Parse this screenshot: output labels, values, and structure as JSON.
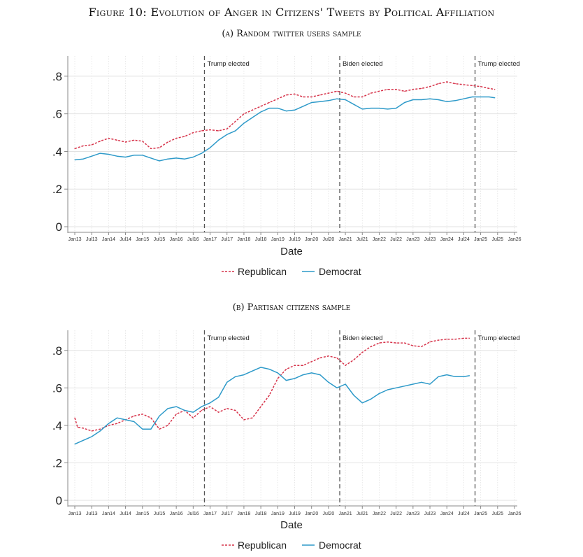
{
  "figure_title": "Figure 10: Evolution of Anger in Citizens' Tweets by Political Affiliation",
  "colors": {
    "republican": "#d6334a",
    "democrat": "#2e9ac9",
    "event": "#555555",
    "grid": "#e2e2e2",
    "axis": "#888888"
  },
  "chart_data": [
    {
      "type": "line",
      "panel_title": "(a) Random twitter users sample",
      "xlabel": "Date",
      "ylabel": "",
      "x_ticks": [
        "Jan13",
        "Jul13",
        "Jan14",
        "Jul14",
        "Jan15",
        "Jul15",
        "Jan16",
        "Jul16",
        "Jan17",
        "Jul17",
        "Jan18",
        "Jul18",
        "Jan19",
        "Jul19",
        "Jan20",
        "Jul20",
        "Jan21",
        "Jul21",
        "Jan22",
        "Jul22",
        "Jan23",
        "Jul23",
        "Jan24",
        "Jul24",
        "Jan25",
        "Jul25",
        "Jan26"
      ],
      "y_ticks": [
        "0",
        ".2",
        ".4",
        ".6",
        ".8"
      ],
      "ylim": [
        0,
        0.9
      ],
      "legend_position": "bottom",
      "grid": true,
      "events": [
        {
          "x": "Nov16",
          "label": "Trump elected"
        },
        {
          "x": "Nov20",
          "label": "Biden elected"
        },
        {
          "x": "Nov24",
          "label": "Trump elected"
        }
      ],
      "series": [
        {
          "name": "Republican",
          "style": "dashed",
          "points": [
            [
              "Jan13",
              0.415
            ],
            [
              "Apr13",
              0.43
            ],
            [
              "Jul13",
              0.435
            ],
            [
              "Oct13",
              0.455
            ],
            [
              "Jan14",
              0.47
            ],
            [
              "Apr14",
              0.46
            ],
            [
              "Jul14",
              0.45
            ],
            [
              "Oct14",
              0.46
            ],
            [
              "Jan15",
              0.455
            ],
            [
              "Apr15",
              0.415
            ],
            [
              "Jul15",
              0.42
            ],
            [
              "Oct15",
              0.45
            ],
            [
              "Jan16",
              0.47
            ],
            [
              "Apr16",
              0.48
            ],
            [
              "Jul16",
              0.5
            ],
            [
              "Oct16",
              0.51
            ],
            [
              "Jan17",
              0.515
            ],
            [
              "Apr17",
              0.51
            ],
            [
              "Jul17",
              0.52
            ],
            [
              "Oct17",
              0.56
            ],
            [
              "Jan18",
              0.6
            ],
            [
              "Apr18",
              0.62
            ],
            [
              "Jul18",
              0.64
            ],
            [
              "Oct18",
              0.66
            ],
            [
              "Jan19",
              0.68
            ],
            [
              "Apr19",
              0.7
            ],
            [
              "Jul19",
              0.705
            ],
            [
              "Oct19",
              0.69
            ],
            [
              "Jan20",
              0.69
            ],
            [
              "Apr20",
              0.7
            ],
            [
              "Jul20",
              0.71
            ],
            [
              "Oct20",
              0.72
            ],
            [
              "Jan21",
              0.71
            ],
            [
              "Apr21",
              0.69
            ],
            [
              "Jul21",
              0.69
            ],
            [
              "Oct21",
              0.71
            ],
            [
              "Jan22",
              0.72
            ],
            [
              "Apr22",
              0.73
            ],
            [
              "Jul22",
              0.73
            ],
            [
              "Oct22",
              0.72
            ],
            [
              "Jan23",
              0.73
            ],
            [
              "Apr23",
              0.735
            ],
            [
              "Jul23",
              0.745
            ],
            [
              "Oct23",
              0.76
            ],
            [
              "Jan24",
              0.77
            ],
            [
              "Apr24",
              0.76
            ],
            [
              "Jul24",
              0.755
            ],
            [
              "Oct24",
              0.75
            ],
            [
              "Jan25",
              0.745
            ],
            [
              "Apr25",
              0.735
            ],
            [
              "Jun25",
              0.73
            ]
          ]
        },
        {
          "name": "Democrat",
          "style": "solid",
          "points": [
            [
              "Jan13",
              0.355
            ],
            [
              "Apr13",
              0.36
            ],
            [
              "Jul13",
              0.375
            ],
            [
              "Oct13",
              0.39
            ],
            [
              "Jan14",
              0.385
            ],
            [
              "Apr14",
              0.375
            ],
            [
              "Jul14",
              0.37
            ],
            [
              "Oct14",
              0.38
            ],
            [
              "Jan15",
              0.38
            ],
            [
              "Apr15",
              0.365
            ],
            [
              "Jul15",
              0.35
            ],
            [
              "Oct15",
              0.36
            ],
            [
              "Jan16",
              0.365
            ],
            [
              "Apr16",
              0.36
            ],
            [
              "Jul16",
              0.37
            ],
            [
              "Oct16",
              0.39
            ],
            [
              "Jan17",
              0.42
            ],
            [
              "Apr17",
              0.46
            ],
            [
              "Jul17",
              0.49
            ],
            [
              "Oct17",
              0.51
            ],
            [
              "Jan18",
              0.55
            ],
            [
              "Apr18",
              0.58
            ],
            [
              "Jul18",
              0.61
            ],
            [
              "Oct18",
              0.63
            ],
            [
              "Jan19",
              0.63
            ],
            [
              "Apr19",
              0.615
            ],
            [
              "Jul19",
              0.62
            ],
            [
              "Oct19",
              0.64
            ],
            [
              "Jan20",
              0.66
            ],
            [
              "Apr20",
              0.665
            ],
            [
              "Jul20",
              0.67
            ],
            [
              "Oct20",
              0.68
            ],
            [
              "Jan21",
              0.675
            ],
            [
              "Apr21",
              0.65
            ],
            [
              "Jul21",
              0.625
            ],
            [
              "Oct21",
              0.63
            ],
            [
              "Jan22",
              0.63
            ],
            [
              "Apr22",
              0.625
            ],
            [
              "Jul22",
              0.63
            ],
            [
              "Oct22",
              0.66
            ],
            [
              "Jan23",
              0.675
            ],
            [
              "Apr23",
              0.675
            ],
            [
              "Jul23",
              0.68
            ],
            [
              "Oct23",
              0.675
            ],
            [
              "Jan24",
              0.665
            ],
            [
              "Apr24",
              0.67
            ],
            [
              "Jul24",
              0.68
            ],
            [
              "Oct24",
              0.69
            ],
            [
              "Jan25",
              0.69
            ],
            [
              "Apr25",
              0.69
            ],
            [
              "Jun25",
              0.685
            ]
          ]
        }
      ]
    },
    {
      "type": "line",
      "panel_title": "(b) Partisan citizens sample",
      "xlabel": "Date",
      "ylabel": "",
      "x_ticks": [
        "Jan13",
        "Jul13",
        "Jan14",
        "Jul14",
        "Jan15",
        "Jul15",
        "Jan16",
        "Jul16",
        "Jan17",
        "Jul17",
        "Jan18",
        "Jul18",
        "Jan19",
        "Jul19",
        "Jan20",
        "Jul20",
        "Jan21",
        "Jul21",
        "Jan22",
        "Jul22",
        "Jan23",
        "Jul23",
        "Jan24",
        "Jul24",
        "Jan25",
        "Jul25",
        "Jan26"
      ],
      "y_ticks": [
        "0",
        ".2",
        ".4",
        ".6",
        ".8"
      ],
      "ylim": [
        0,
        0.9
      ],
      "legend_position": "bottom",
      "grid": true,
      "events": [
        {
          "x": "Nov16",
          "label": "Trump elected"
        },
        {
          "x": "Nov20",
          "label": "Biden elected"
        },
        {
          "x": "Nov24",
          "label": "Trump elected"
        }
      ],
      "series": [
        {
          "name": "Republican",
          "style": "dashed",
          "points": [
            [
              "Jan13",
              0.44
            ],
            [
              "Feb13",
              0.39
            ],
            [
              "Apr13",
              0.385
            ],
            [
              "Jul13",
              0.37
            ],
            [
              "Oct13",
              0.38
            ],
            [
              "Jan14",
              0.4
            ],
            [
              "Apr14",
              0.41
            ],
            [
              "Jul14",
              0.43
            ],
            [
              "Oct14",
              0.45
            ],
            [
              "Jan15",
              0.46
            ],
            [
              "Apr15",
              0.44
            ],
            [
              "Jul15",
              0.38
            ],
            [
              "Oct15",
              0.4
            ],
            [
              "Jan16",
              0.46
            ],
            [
              "Apr16",
              0.48
            ],
            [
              "Jul16",
              0.44
            ],
            [
              "Oct16",
              0.48
            ],
            [
              "Jan17",
              0.5
            ],
            [
              "Apr17",
              0.47
            ],
            [
              "Jul17",
              0.49
            ],
            [
              "Oct17",
              0.48
            ],
            [
              "Jan18",
              0.43
            ],
            [
              "Apr18",
              0.44
            ],
            [
              "Jul18",
              0.5
            ],
            [
              "Oct18",
              0.56
            ],
            [
              "Jan19",
              0.65
            ],
            [
              "Apr19",
              0.7
            ],
            [
              "Jul19",
              0.72
            ],
            [
              "Oct19",
              0.72
            ],
            [
              "Jan20",
              0.74
            ],
            [
              "Apr20",
              0.76
            ],
            [
              "Jul20",
              0.77
            ],
            [
              "Oct20",
              0.76
            ],
            [
              "Jan21",
              0.72
            ],
            [
              "Apr21",
              0.75
            ],
            [
              "Jul21",
              0.79
            ],
            [
              "Oct21",
              0.82
            ],
            [
              "Jan22",
              0.84
            ],
            [
              "Apr22",
              0.845
            ],
            [
              "Jul22",
              0.84
            ],
            [
              "Oct22",
              0.84
            ],
            [
              "Jan23",
              0.825
            ],
            [
              "Apr23",
              0.82
            ],
            [
              "Jul23",
              0.845
            ],
            [
              "Oct23",
              0.855
            ],
            [
              "Jan24",
              0.86
            ],
            [
              "Apr24",
              0.86
            ],
            [
              "Jul24",
              0.865
            ],
            [
              "Sep24",
              0.865
            ]
          ]
        },
        {
          "name": "Democrat",
          "style": "solid",
          "points": [
            [
              "Jan13",
              0.3
            ],
            [
              "Apr13",
              0.32
            ],
            [
              "Jul13",
              0.34
            ],
            [
              "Oct13",
              0.37
            ],
            [
              "Jan14",
              0.41
            ],
            [
              "Apr14",
              0.44
            ],
            [
              "Jul14",
              0.43
            ],
            [
              "Oct14",
              0.42
            ],
            [
              "Jan15",
              0.38
            ],
            [
              "Apr15",
              0.38
            ],
            [
              "Jul15",
              0.45
            ],
            [
              "Oct15",
              0.49
            ],
            [
              "Jan16",
              0.5
            ],
            [
              "Apr16",
              0.48
            ],
            [
              "Jul16",
              0.47
            ],
            [
              "Oct16",
              0.5
            ],
            [
              "Jan17",
              0.52
            ],
            [
              "Apr17",
              0.55
            ],
            [
              "Jul17",
              0.63
            ],
            [
              "Oct17",
              0.66
            ],
            [
              "Jan18",
              0.67
            ],
            [
              "Apr18",
              0.69
            ],
            [
              "Jul18",
              0.71
            ],
            [
              "Oct18",
              0.7
            ],
            [
              "Jan19",
              0.68
            ],
            [
              "Apr19",
              0.64
            ],
            [
              "Jul19",
              0.65
            ],
            [
              "Oct19",
              0.67
            ],
            [
              "Jan20",
              0.68
            ],
            [
              "Apr20",
              0.67
            ],
            [
              "Jul20",
              0.63
            ],
            [
              "Oct20",
              0.6
            ],
            [
              "Jan21",
              0.62
            ],
            [
              "Apr21",
              0.56
            ],
            [
              "Jul21",
              0.52
            ],
            [
              "Oct21",
              0.54
            ],
            [
              "Jan22",
              0.57
            ],
            [
              "Apr22",
              0.59
            ],
            [
              "Jul22",
              0.6
            ],
            [
              "Oct22",
              0.61
            ],
            [
              "Jan23",
              0.62
            ],
            [
              "Apr23",
              0.63
            ],
            [
              "Jul23",
              0.62
            ],
            [
              "Oct23",
              0.66
            ],
            [
              "Jan24",
              0.67
            ],
            [
              "Apr24",
              0.66
            ],
            [
              "Jul24",
              0.66
            ],
            [
              "Sep24",
              0.665
            ]
          ]
        }
      ]
    }
  ]
}
